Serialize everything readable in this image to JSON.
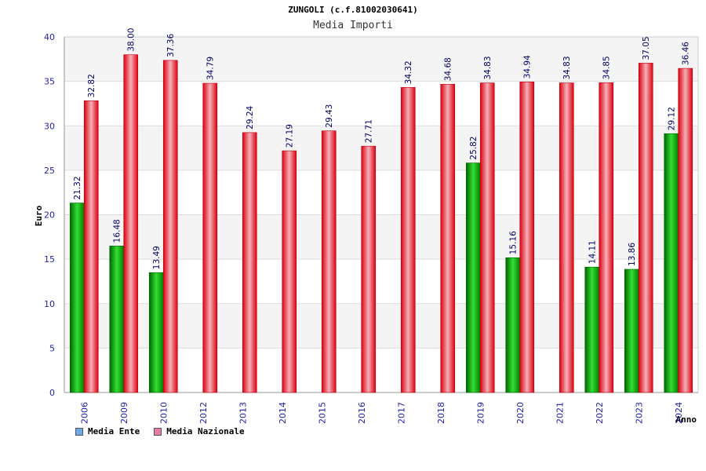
{
  "chart_data": {
    "type": "bar",
    "title": "ZUNGOLI (c.f.81002030641)",
    "subtitle": "Media Importi",
    "xlabel": "Anno",
    "ylabel": "Euro",
    "ylim": [
      0,
      40
    ],
    "yticks": [
      0,
      5,
      10,
      15,
      20,
      25,
      30,
      35,
      40
    ],
    "grid": true,
    "legend_position": "bottom-left",
    "categories": [
      "2006",
      "2009",
      "2010",
      "2012",
      "2013",
      "2014",
      "2015",
      "2016",
      "2017",
      "2018",
      "2019",
      "2020",
      "2021",
      "2022",
      "2023",
      "2024"
    ],
    "series": [
      {
        "name": "Media Ente",
        "color": "#00a000",
        "legend_color": "#6fa8e8",
        "values": [
          21.32,
          16.48,
          13.49,
          null,
          null,
          null,
          null,
          null,
          null,
          null,
          25.82,
          15.16,
          null,
          14.11,
          13.86,
          29.12
        ],
        "labels": [
          "21.32",
          "16.48",
          "13.49",
          null,
          null,
          null,
          null,
          null,
          null,
          null,
          "25.82",
          "15.16",
          null,
          "14.11",
          "13.86",
          "29.12"
        ]
      },
      {
        "name": "Media Nazionale",
        "color": "#e00010",
        "legend_color": "#e87aa8",
        "values": [
          32.82,
          38.0,
          37.36,
          34.79,
          29.24,
          27.19,
          29.43,
          27.71,
          34.32,
          34.68,
          34.83,
          34.94,
          34.83,
          34.85,
          37.05,
          36.46
        ],
        "labels": [
          "32.82",
          "38.00",
          "37.36",
          "34.79",
          "29.24",
          "27.19",
          "29.43",
          "27.71",
          "34.32",
          "34.68",
          "34.83",
          "34.94",
          "34.83",
          "34.85",
          "37.05",
          "36.46"
        ]
      }
    ]
  }
}
